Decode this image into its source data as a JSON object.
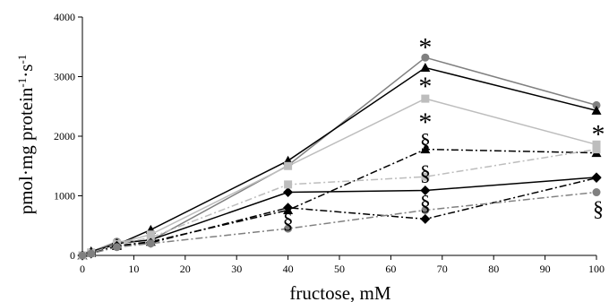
{
  "chart_data": {
    "type": "line",
    "xlabel": "fructose, mM",
    "ylabel": "pmol·mg protein-1·s-1",
    "xlim": [
      0,
      100
    ],
    "ylim": [
      0,
      4000
    ],
    "xticks": [
      "0",
      "10",
      "20",
      "30",
      "40",
      "50",
      "60",
      "70",
      "80",
      "90",
      "100"
    ],
    "yticks": [
      "0",
      "1000",
      "2000",
      "3000",
      "4000"
    ],
    "x": [
      0,
      1.7,
      6.7,
      13.3,
      40,
      66.7,
      100
    ],
    "series": [
      {
        "marker": "circle",
        "color": "#808080",
        "dash": "solid",
        "values": [
          0,
          60,
          230,
          250,
          1510,
          3320,
          2520
        ]
      },
      {
        "marker": "triangle",
        "color": "#000000",
        "dash": "solid",
        "values": [
          0,
          70,
          180,
          430,
          1590,
          3150,
          2430
        ]
      },
      {
        "marker": "square",
        "color": "#bdbdbd",
        "dash": "solid",
        "values": [
          0,
          50,
          200,
          350,
          1500,
          2630,
          1860
        ]
      },
      {
        "marker": "diamond",
        "color": "#000000",
        "dash": "solid",
        "values": [
          0,
          50,
          200,
          260,
          1060,
          1090,
          1310
        ]
      },
      {
        "marker": "triangle",
        "color": "#000000",
        "dash": "dashdot",
        "values": [
          0,
          40,
          160,
          230,
          760,
          1780,
          1720
        ]
      },
      {
        "marker": "square",
        "color": "#bdbdbd",
        "dash": "dashdot",
        "values": [
          0,
          40,
          190,
          300,
          1190,
          1320,
          1780
        ]
      },
      {
        "marker": "diamond",
        "color": "#000000",
        "dash": "dashdot",
        "values": [
          0,
          30,
          160,
          210,
          800,
          610,
          1300
        ]
      },
      {
        "marker": "circle",
        "color": "#808080",
        "dash": "dashdot",
        "values": [
          0,
          30,
          140,
          200,
          450,
          760,
          1060
        ]
      }
    ],
    "annotations": [
      {
        "text": "*",
        "x": 66.7,
        "y": 3560
      },
      {
        "text": "*",
        "x": 66.7,
        "y": 2900
      },
      {
        "text": "*",
        "x": 66.7,
        "y": 2300
      },
      {
        "text": "*",
        "x": 100,
        "y": 2100
      },
      {
        "text": "§",
        "x": 66.7,
        "y": 1920
      },
      {
        "text": "§",
        "x": 66.7,
        "y": 1380
      },
      {
        "text": "§",
        "x": 66.7,
        "y": 880
      },
      {
        "text": "§",
        "x": 40,
        "y": 580
      },
      {
        "text": "§",
        "x": 100,
        "y": 780
      }
    ]
  }
}
